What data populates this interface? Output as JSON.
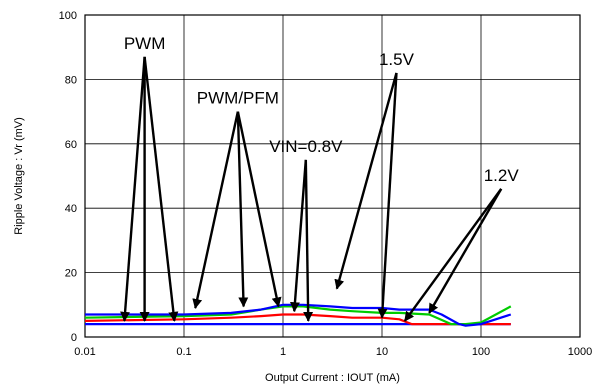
{
  "chart_data": {
    "type": "line",
    "title": "",
    "xlabel": "Output Current : IOUT (mA)",
    "ylabel": "Ripple Voltage : Vr (mV)",
    "x_scale": "log",
    "xlim": [
      0.01,
      1000
    ],
    "ylim": [
      0,
      100
    ],
    "grid": true,
    "x_ticks": [
      "0.01",
      "0.1",
      "1",
      "10",
      "100",
      "1000"
    ],
    "y_ticks": [
      "0",
      "20",
      "40",
      "60",
      "80",
      "100"
    ],
    "x_tick_values": [
      0.01,
      0.1,
      1,
      10,
      100,
      1000
    ],
    "y_tick_values": [
      0,
      20,
      40,
      60,
      80,
      100
    ],
    "series": [
      {
        "color": "#0000ff",
        "x": [
          0.01,
          0.1,
          0.3,
          0.6,
          1,
          1.6,
          3,
          5,
          10,
          20,
          30,
          50,
          70,
          100,
          200
        ],
        "y": [
          4,
          4,
          4,
          4,
          4,
          4,
          4,
          4,
          4,
          4,
          4,
          4,
          4,
          4,
          4
        ]
      },
      {
        "color": "#ff0000",
        "x": [
          0.01,
          0.1,
          0.3,
          0.6,
          1,
          1.6,
          3,
          5,
          10,
          15,
          20,
          30,
          50,
          70,
          100,
          200
        ],
        "y": [
          5,
          5.5,
          6,
          6.5,
          7,
          7,
          6.5,
          6,
          6,
          5.5,
          4,
          4,
          4,
          4,
          4,
          4
        ]
      },
      {
        "color": "#00cc00",
        "x": [
          0.01,
          0.1,
          0.3,
          0.6,
          1,
          1.6,
          3,
          5,
          10,
          15,
          30,
          50,
          70,
          100,
          200
        ],
        "y": [
          6,
          6.5,
          7,
          8.5,
          9.5,
          9.5,
          8.5,
          8,
          7.5,
          7.5,
          7,
          4,
          4,
          4.5,
          9.5
        ]
      },
      {
        "color": "#0000ff",
        "x": [
          0.01,
          0.1,
          0.3,
          0.6,
          1,
          1.6,
          3,
          5,
          10,
          15,
          30,
          40,
          60,
          70,
          100,
          200
        ],
        "y": [
          7,
          7,
          7.5,
          8.5,
          10,
          10,
          9.5,
          9,
          9,
          8.5,
          8.5,
          7,
          4,
          3.5,
          4,
          7
        ]
      }
    ],
    "annotations": [
      {
        "text": "PWM",
        "anchor": [
          0.04,
          87
        ],
        "pointers": [
          [
            0.025,
            5
          ],
          [
            0.04,
            5
          ],
          [
            0.08,
            5
          ]
        ]
      },
      {
        "text": "PWM/PFM",
        "anchor": [
          0.35,
          70
        ],
        "pointers": [
          [
            0.13,
            9
          ],
          [
            0.4,
            9.5
          ],
          [
            0.9,
            9.5
          ]
        ]
      },
      {
        "text": "VIN=0.8V",
        "anchor": [
          1.7,
          55
        ],
        "pointers": [
          [
            1.3,
            8
          ],
          [
            1.8,
            5
          ]
        ]
      },
      {
        "text": "1.5V",
        "anchor": [
          14,
          82
        ],
        "pointers": [
          [
            3.5,
            15
          ],
          [
            10,
            6
          ]
        ]
      },
      {
        "text": "1.2V",
        "anchor": [
          160,
          46
        ],
        "pointers": [
          [
            17,
            5
          ],
          [
            30,
            7.5
          ]
        ]
      }
    ]
  }
}
